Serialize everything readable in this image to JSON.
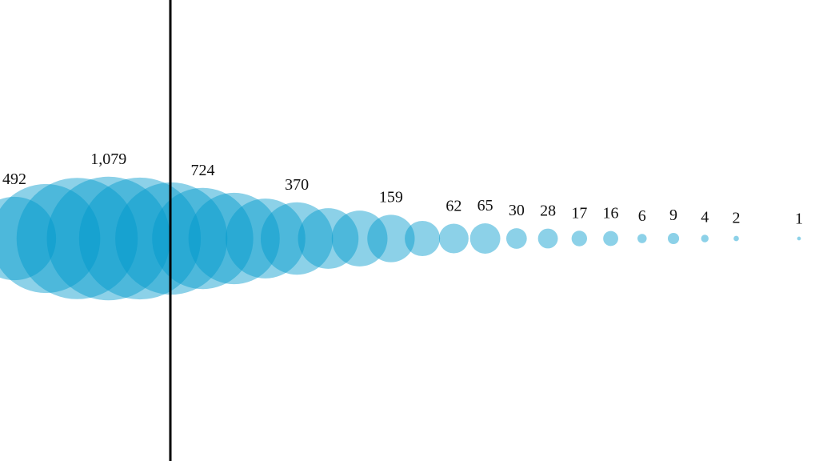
{
  "chart_data": {
    "type": "bubble",
    "values": [
      492,
      840,
      1040,
      1079,
      1050,
      890,
      724,
      590,
      450,
      370,
      260,
      220,
      159,
      88,
      62,
      65,
      30,
      28,
      17,
      16,
      6,
      9,
      4,
      2,
      null,
      1
    ],
    "value_labels": [
      "492",
      null,
      null,
      "1,079",
      null,
      null,
      "724",
      null,
      null,
      "370",
      null,
      null,
      "159",
      null,
      "62",
      "65",
      "30",
      "28",
      "17",
      "16",
      "6",
      "9",
      "4",
      "2",
      null,
      "1"
    ],
    "color": "#0099cc"
  }
}
